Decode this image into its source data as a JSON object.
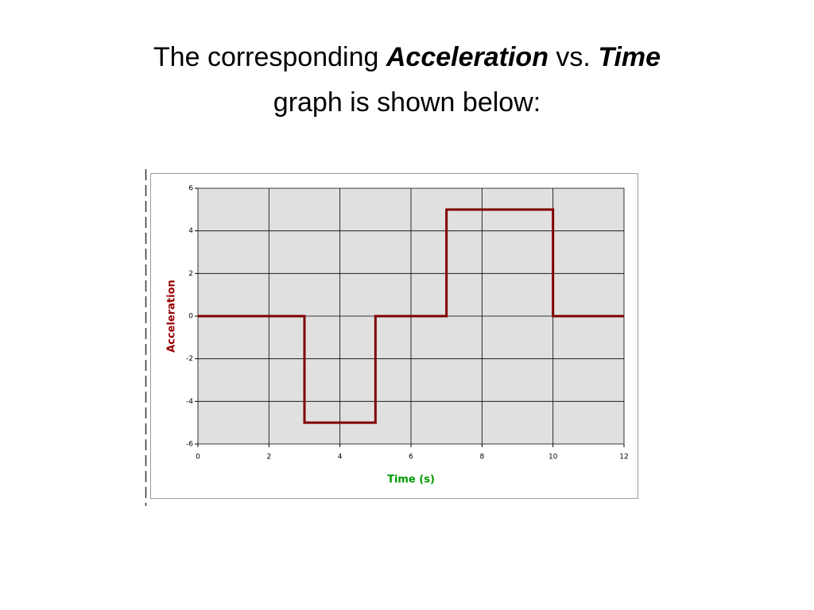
{
  "slide": {
    "title_parts": [
      "The corresponding",
      "Acceleration",
      "vs.",
      "Time",
      "graph is shown below:"
    ]
  },
  "chart_data": {
    "type": "line",
    "y_label": "Acceleration",
    "x_label": "Time (s)",
    "x": [
      0,
      3,
      3,
      5,
      5,
      7,
      7,
      10,
      10,
      12
    ],
    "values": [
      0,
      0,
      -5,
      -5,
      0,
      0,
      5,
      5,
      0,
      0
    ],
    "color": "#800000",
    "xlim": [
      0,
      12
    ],
    "xticks": [
      0,
      2,
      4,
      6,
      8,
      10,
      12
    ],
    "ylim": [
      -6,
      6
    ],
    "yticks": [
      -6,
      -4,
      -2,
      0,
      2,
      4,
      6
    ],
    "grid": true
  }
}
